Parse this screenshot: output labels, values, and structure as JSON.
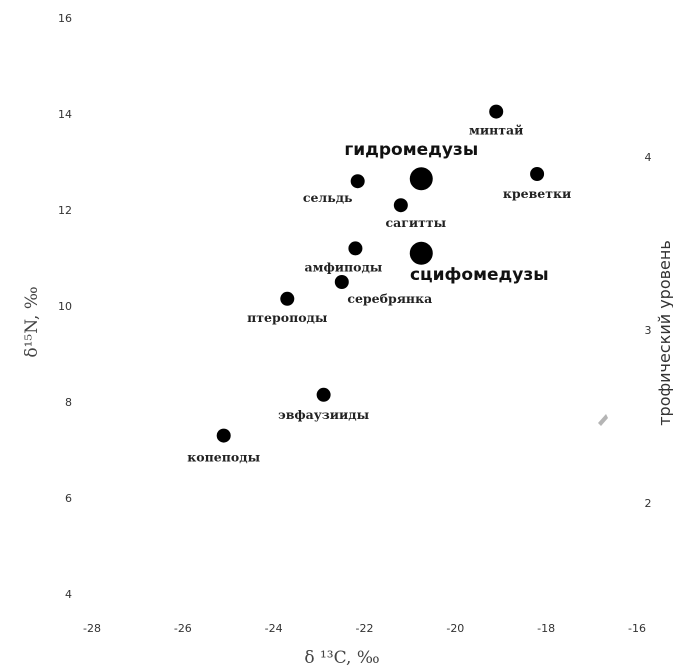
{
  "chart_data": {
    "type": "scatter",
    "xlabel": "δ ¹³C, ‰",
    "ylabel": "δ¹⁵N, ‰",
    "y2label": "трофический уровень",
    "xlim": [
      -28,
      -16
    ],
    "ylim": [
      3.5,
      16.3
    ],
    "xticks": [
      -28,
      -26,
      -24,
      -22,
      -20,
      -18,
      -16
    ],
    "yticks": [
      4,
      6,
      8,
      10,
      12,
      14,
      16
    ],
    "y2ticks": [
      2,
      3,
      4
    ],
    "y2_at_y": {
      "2": 5.9,
      "3": 9.5,
      "4": 13.1
    },
    "grid": false,
    "points": [
      {
        "label": "копеподы",
        "x": -25.1,
        "y": 7.3,
        "size": "small",
        "label_style": "serif"
      },
      {
        "label": "эвфаузииды",
        "x": -22.9,
        "y": 8.15,
        "size": "small",
        "label_style": "serif"
      },
      {
        "label": "птероподы",
        "x": -23.7,
        "y": 10.15,
        "size": "small",
        "label_style": "serif"
      },
      {
        "label": "серебрянка",
        "x": -22.5,
        "y": 10.5,
        "size": "small",
        "label_style": "serif"
      },
      {
        "label": "амфиподы",
        "x": -22.2,
        "y": 11.2,
        "size": "small",
        "label_style": "serif"
      },
      {
        "label": "сельдь",
        "x": -22.15,
        "y": 12.6,
        "size": "small",
        "label_style": "serif"
      },
      {
        "label": "сагитты",
        "x": -21.2,
        "y": 12.1,
        "size": "small",
        "label_style": "serif"
      },
      {
        "label": "гидромедузы",
        "x": -20.75,
        "y": 12.65,
        "size": "large",
        "label_style": "sans"
      },
      {
        "label": "сцифомедузы",
        "x": -20.75,
        "y": 11.1,
        "size": "large",
        "label_style": "sans"
      },
      {
        "label": "минтай",
        "x": -19.1,
        "y": 14.05,
        "size": "small",
        "label_style": "serif"
      },
      {
        "label": "креветки",
        "x": -18.2,
        "y": 12.75,
        "size": "small",
        "label_style": "serif"
      }
    ]
  }
}
